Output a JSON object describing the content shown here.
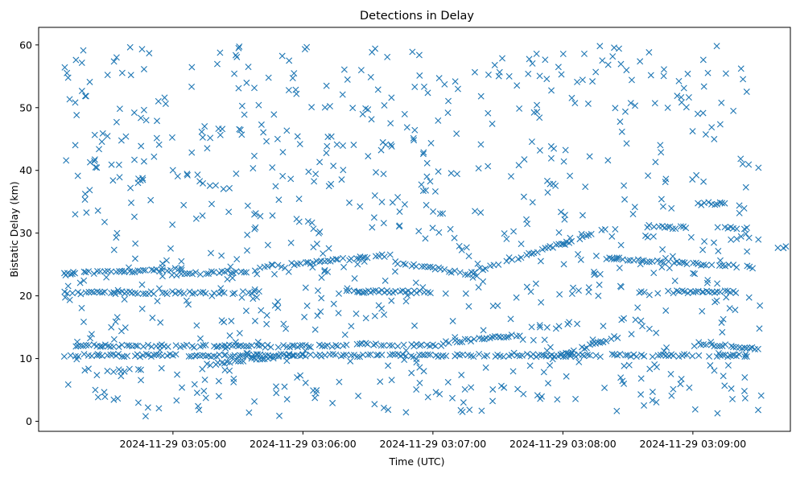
{
  "chart_data": {
    "type": "scatter",
    "title": "Detections in Delay",
    "xlabel": "Time (UTC)",
    "ylabel": "Bistatic Delay (km)",
    "marker": "x",
    "color": "#1f77b4",
    "xlim_seconds": [
      -62,
      285
    ],
    "ylim": [
      -1.6,
      62.8
    ],
    "grid": false,
    "x_ticks": [
      {
        "t": 0,
        "label": "2024-11-29 03:05:00"
      },
      {
        "t": 60,
        "label": "2024-11-29 03:06:00"
      },
      {
        "t": 120,
        "label": "2024-11-29 03:07:00"
      },
      {
        "t": 180,
        "label": "2024-11-29 03:08:00"
      },
      {
        "t": 240,
        "label": "2024-11-29 03:09:00"
      }
    ],
    "y_ticks": [
      0,
      10,
      20,
      30,
      40,
      50,
      60
    ],
    "time_range_seconds": [
      -50,
      272
    ],
    "delay_range_km": [
      0.8,
      59.9
    ],
    "tracks": [
      {
        "name": "track-23.5",
        "t0": -50,
        "t1": 4,
        "d0": 23.6,
        "d1": 24.2
      },
      {
        "name": "track-23.8",
        "t0": 4,
        "t1": 40,
        "d0": 23.5,
        "d1": 24.0
      },
      {
        "name": "track-25a",
        "t0": 40,
        "t1": 100,
        "d0": 24.5,
        "d1": 26.5
      },
      {
        "name": "track-25b",
        "t0": 100,
        "t1": 140,
        "d0": 25.5,
        "d1": 23.3
      },
      {
        "name": "track-rising",
        "t0": 138,
        "t1": 200,
        "d0": 23.8,
        "d1": 30.5
      },
      {
        "name": "track-25c",
        "t0": 200,
        "t1": 272,
        "d0": 26.0,
        "d1": 24.5
      },
      {
        "name": "track-20.5",
        "t0": -50,
        "t1": 40,
        "d0": 20.5,
        "d1": 20.5
      },
      {
        "name": "track-20.7",
        "t0": 80,
        "t1": 120,
        "d0": 20.7,
        "d1": 20.6
      },
      {
        "name": "track-20.6",
        "t0": 215,
        "t1": 260,
        "d0": 20.6,
        "d1": 20.6
      },
      {
        "name": "track-10.5a",
        "t0": -50,
        "t1": 265,
        "d0": 10.5,
        "d1": 10.5
      },
      {
        "name": "track-12",
        "t0": -45,
        "t1": 80,
        "d0": 12.0,
        "d1": 12.0
      },
      {
        "name": "track-8",
        "t0": -30,
        "t1": -15,
        "d0": 8.0,
        "d1": 8.2
      },
      {
        "name": "track-9-11",
        "t0": 15,
        "t1": 60,
        "d0": 9.0,
        "d1": 10.8
      },
      {
        "name": "track-12.3",
        "t0": 85,
        "t1": 125,
        "d0": 12.3,
        "d1": 12.0
      },
      {
        "name": "track-13",
        "t0": 125,
        "t1": 160,
        "d0": 12.5,
        "d1": 13.8
      },
      {
        "name": "track-10-14",
        "t0": 175,
        "t1": 205,
        "d0": 10.0,
        "d1": 13.5
      },
      {
        "name": "track-12-end",
        "t0": 240,
        "t1": 272,
        "d0": 12.5,
        "d1": 11.5
      },
      {
        "name": "track-34.7",
        "t0": 240,
        "t1": 255,
        "d0": 34.7,
        "d1": 34.7
      },
      {
        "name": "track-31",
        "t0": 222,
        "t1": 240,
        "d0": 31.0,
        "d1": 30.8
      },
      {
        "name": "track-31b",
        "t0": 255,
        "t1": 265,
        "d0": 30.8,
        "d1": 30.8
      },
      {
        "name": "track-27.5",
        "t0": 278,
        "t1": 283,
        "d0": 27.7,
        "d1": 27.7
      }
    ],
    "noise_points": 820,
    "track_spacing_seconds": 1.25,
    "seed": 7
  }
}
